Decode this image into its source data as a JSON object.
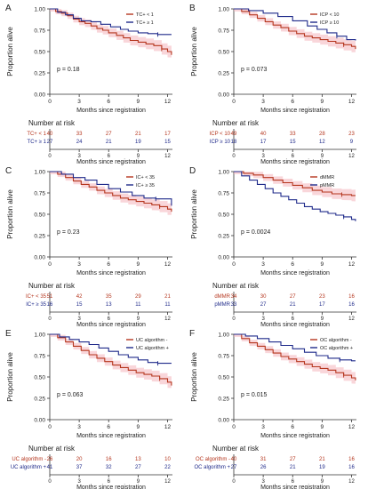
{
  "colors": {
    "series1": "#b5361e",
    "series2": "#1f2a8a",
    "ci_band": "#f4b4bb",
    "axis": "#333333",
    "text": "#222222"
  },
  "chart_data": [
    {
      "type": "line",
      "panel_label": "A",
      "ylabel": "Proportion alive",
      "xlabel": "Months since registration",
      "x_ticks": [
        0,
        3,
        6,
        9,
        12
      ],
      "y_ticks": [
        "0.00",
        "0.25",
        "0.50",
        "0.75",
        "1.00"
      ],
      "xlim": [
        0,
        12.5
      ],
      "ylim": [
        0,
        1
      ],
      "legend_position": "top-right",
      "p_value": "p = 0.18",
      "risk_title": "Number at risk",
      "series": [
        {
          "name": "TC+ < 1",
          "color": "#b5361e",
          "risk": [
            "40",
            "33",
            "27",
            "21",
            "17"
          ],
          "x": [
            0,
            0.6,
            1.2,
            1.8,
            2.4,
            3.0,
            3.6,
            4.2,
            4.8,
            5.4,
            6.0,
            6.8,
            7.5,
            8.2,
            9.0,
            9.8,
            10.6,
            11.4,
            12.0,
            12.4
          ],
          "y": [
            1.0,
            0.97,
            0.95,
            0.92,
            0.88,
            0.85,
            0.83,
            0.8,
            0.77,
            0.75,
            0.72,
            0.69,
            0.66,
            0.63,
            0.61,
            0.59,
            0.57,
            0.53,
            0.5,
            0.46
          ]
        },
        {
          "name": "TC+ ≥ 1",
          "color": "#1f2a8a",
          "risk": [
            "27",
            "24",
            "21",
            "19",
            "15"
          ],
          "x": [
            0,
            0.8,
            1.6,
            2.4,
            3.2,
            4.2,
            5.2,
            6.2,
            7.2,
            8.0,
            9.0,
            10.0,
            11.0,
            12.0,
            12.4
          ],
          "y": [
            1.0,
            0.96,
            0.93,
            0.89,
            0.86,
            0.85,
            0.82,
            0.79,
            0.76,
            0.74,
            0.72,
            0.71,
            0.7,
            0.7,
            0.7
          ]
        }
      ]
    },
    {
      "type": "line",
      "panel_label": "B",
      "ylabel": "Proportion alive",
      "xlabel": "Months since registration",
      "x_ticks": [
        0,
        3,
        6,
        9,
        12
      ],
      "y_ticks": [
        "0.00",
        "0.25",
        "0.50",
        "0.75",
        "1.00"
      ],
      "xlim": [
        0,
        12.5
      ],
      "ylim": [
        0,
        1
      ],
      "legend_position": "top-right",
      "p_value": "p = 0.073",
      "risk_title": "Number at risk",
      "series": [
        {
          "name": "ICP < 10",
          "color": "#b5361e",
          "risk": [
            "49",
            "40",
            "33",
            "28",
            "23"
          ],
          "x": [
            0,
            0.8,
            1.6,
            2.4,
            3.2,
            4.0,
            4.8,
            5.6,
            6.4,
            7.2,
            8.0,
            8.8,
            9.6,
            10.4,
            11.2,
            12.0,
            12.4
          ],
          "y": [
            1.0,
            0.97,
            0.93,
            0.89,
            0.85,
            0.81,
            0.78,
            0.74,
            0.71,
            0.68,
            0.66,
            0.64,
            0.62,
            0.6,
            0.58,
            0.56,
            0.53
          ]
        },
        {
          "name": "ICP ≥ 10",
          "color": "#1f2a8a",
          "risk": [
            "18",
            "17",
            "15",
            "12",
            "9"
          ],
          "x": [
            0,
            1.5,
            3.0,
            4.5,
            6.0,
            7.5,
            8.5,
            9.5,
            10.5,
            11.5,
            12.4
          ],
          "y": [
            1.0,
            0.98,
            0.95,
            0.91,
            0.86,
            0.8,
            0.76,
            0.72,
            0.68,
            0.64,
            0.63
          ]
        }
      ]
    },
    {
      "type": "line",
      "panel_label": "C",
      "ylabel": "Proportion alive",
      "xlabel": "Months since registration",
      "x_ticks": [
        0,
        3,
        6,
        9,
        12
      ],
      "y_ticks": [
        "0.00",
        "0.25",
        "0.50",
        "0.75",
        "1.00"
      ],
      "xlim": [
        0,
        12.5
      ],
      "ylim": [
        0,
        1
      ],
      "legend_position": "top-right",
      "p_value": "p = 0.23",
      "risk_title": "Number at risk",
      "series": [
        {
          "name": "IC+ < 35",
          "color": "#b5361e",
          "risk": [
            "51",
            "42",
            "35",
            "29",
            "21"
          ],
          "x": [
            0,
            0.8,
            1.6,
            2.4,
            3.2,
            4.0,
            4.8,
            5.6,
            6.4,
            7.2,
            8.0,
            8.8,
            9.6,
            10.4,
            11.2,
            12.0,
            12.4
          ],
          "y": [
            1.0,
            0.97,
            0.93,
            0.89,
            0.85,
            0.82,
            0.78,
            0.75,
            0.72,
            0.69,
            0.67,
            0.65,
            0.63,
            0.61,
            0.59,
            0.56,
            0.53
          ]
        },
        {
          "name": "IC+ ≥ 35",
          "color": "#1f2a8a",
          "risk": [
            "16",
            "15",
            "13",
            "11",
            "11"
          ],
          "x": [
            0,
            1.2,
            2.4,
            3.6,
            4.8,
            6.0,
            7.2,
            8.4,
            9.6,
            10.8,
            12.0,
            12.4
          ],
          "y": [
            1.0,
            0.97,
            0.93,
            0.9,
            0.85,
            0.8,
            0.76,
            0.72,
            0.69,
            0.68,
            0.68,
            0.6
          ]
        }
      ]
    },
    {
      "type": "line",
      "panel_label": "D",
      "ylabel": "Proportion alive",
      "xlabel": "Months since registration",
      "x_ticks": [
        0,
        3,
        6,
        9,
        12
      ],
      "y_ticks": [
        "0.00",
        "0.25",
        "0.50",
        "0.75",
        "1.00"
      ],
      "xlim": [
        0,
        12.5
      ],
      "ylim": [
        0,
        1
      ],
      "legend_position": "top-right",
      "p_value": "p = 0.0024",
      "risk_title": "Number at risk",
      "series": [
        {
          "name": "dMMR",
          "color": "#b5361e",
          "risk": [
            "34",
            "30",
            "27",
            "23",
            "16"
          ],
          "x": [
            0,
            1.0,
            2.0,
            3.0,
            4.0,
            5.0,
            6.0,
            7.0,
            8.0,
            9.0,
            10.0,
            11.0,
            12.0,
            12.4
          ],
          "y": [
            1.0,
            0.98,
            0.96,
            0.93,
            0.9,
            0.87,
            0.84,
            0.81,
            0.78,
            0.76,
            0.74,
            0.73,
            0.72,
            0.72
          ]
        },
        {
          "name": "pMMR",
          "color": "#1f2a8a",
          "risk": [
            "33",
            "27",
            "21",
            "17",
            "16"
          ],
          "x": [
            0,
            0.8,
            1.6,
            2.4,
            3.2,
            4.0,
            4.8,
            5.6,
            6.4,
            7.2,
            8.0,
            8.8,
            9.6,
            10.4,
            11.2,
            12.0,
            12.4
          ],
          "y": [
            1.0,
            0.95,
            0.9,
            0.85,
            0.8,
            0.75,
            0.71,
            0.67,
            0.63,
            0.59,
            0.56,
            0.53,
            0.51,
            0.49,
            0.47,
            0.44,
            0.42
          ]
        }
      ]
    },
    {
      "type": "line",
      "panel_label": "E",
      "ylabel": "Proportion alive",
      "xlabel": "Months since registration",
      "x_ticks": [
        0,
        3,
        6,
        9,
        12
      ],
      "y_ticks": [
        "0.00",
        "0.25",
        "0.50",
        "0.75",
        "1.00"
      ],
      "xlim": [
        0,
        12.5
      ],
      "ylim": [
        0,
        1
      ],
      "legend_position": "top-right",
      "p_value": "p = 0.063",
      "risk_title": "Number at risk",
      "series": [
        {
          "name": "UC algorithm -",
          "color": "#b5361e",
          "risk": [
            "26",
            "20",
            "16",
            "13",
            "10"
          ],
          "x": [
            0,
            0.8,
            1.6,
            2.4,
            3.2,
            4.0,
            4.8,
            5.6,
            6.4,
            7.2,
            8.0,
            8.8,
            9.6,
            10.4,
            11.2,
            12.0,
            12.4
          ],
          "y": [
            1.0,
            0.96,
            0.91,
            0.86,
            0.81,
            0.76,
            0.72,
            0.68,
            0.64,
            0.61,
            0.58,
            0.55,
            0.53,
            0.51,
            0.48,
            0.44,
            0.4
          ]
        },
        {
          "name": "UC algorithm +",
          "color": "#1f2a8a",
          "risk": [
            "41",
            "37",
            "32",
            "27",
            "22"
          ],
          "x": [
            0,
            1.0,
            2.0,
            3.0,
            4.0,
            5.0,
            6.0,
            7.0,
            8.0,
            9.0,
            10.0,
            11.0,
            12.0,
            12.4
          ],
          "y": [
            1.0,
            0.97,
            0.94,
            0.91,
            0.88,
            0.84,
            0.8,
            0.76,
            0.73,
            0.7,
            0.67,
            0.66,
            0.66,
            0.66
          ]
        }
      ]
    },
    {
      "type": "line",
      "panel_label": "F",
      "ylabel": "Proportion alive",
      "xlabel": "Months since registration",
      "x_ticks": [
        0,
        3,
        6,
        9,
        12
      ],
      "y_ticks": [
        "0.00",
        "0.25",
        "0.50",
        "0.75",
        "1.00"
      ],
      "xlim": [
        0,
        12.5
      ],
      "ylim": [
        0,
        1
      ],
      "legend_position": "top-right",
      "p_value": "p = 0.015",
      "risk_title": "Number at risk",
      "series": [
        {
          "name": "OC algorithm -",
          "color": "#b5361e",
          "risk": [
            "40",
            "31",
            "27",
            "21",
            "16"
          ],
          "x": [
            0,
            0.8,
            1.6,
            2.4,
            3.2,
            4.0,
            4.8,
            5.6,
            6.4,
            7.2,
            8.0,
            8.8,
            9.6,
            10.4,
            11.2,
            12.0,
            12.4
          ],
          "y": [
            1.0,
            0.95,
            0.9,
            0.86,
            0.82,
            0.78,
            0.74,
            0.71,
            0.68,
            0.65,
            0.62,
            0.6,
            0.58,
            0.55,
            0.52,
            0.49,
            0.46
          ]
        },
        {
          "name": "OC algorithm +",
          "color": "#1f2a8a",
          "risk": [
            "27",
            "26",
            "21",
            "19",
            "16"
          ],
          "x": [
            0,
            1.2,
            2.4,
            3.6,
            4.8,
            6.0,
            7.2,
            8.4,
            9.6,
            10.8,
            12.0,
            12.4
          ],
          "y": [
            1.0,
            0.98,
            0.95,
            0.91,
            0.87,
            0.83,
            0.79,
            0.75,
            0.72,
            0.7,
            0.69,
            0.69
          ]
        }
      ]
    }
  ]
}
